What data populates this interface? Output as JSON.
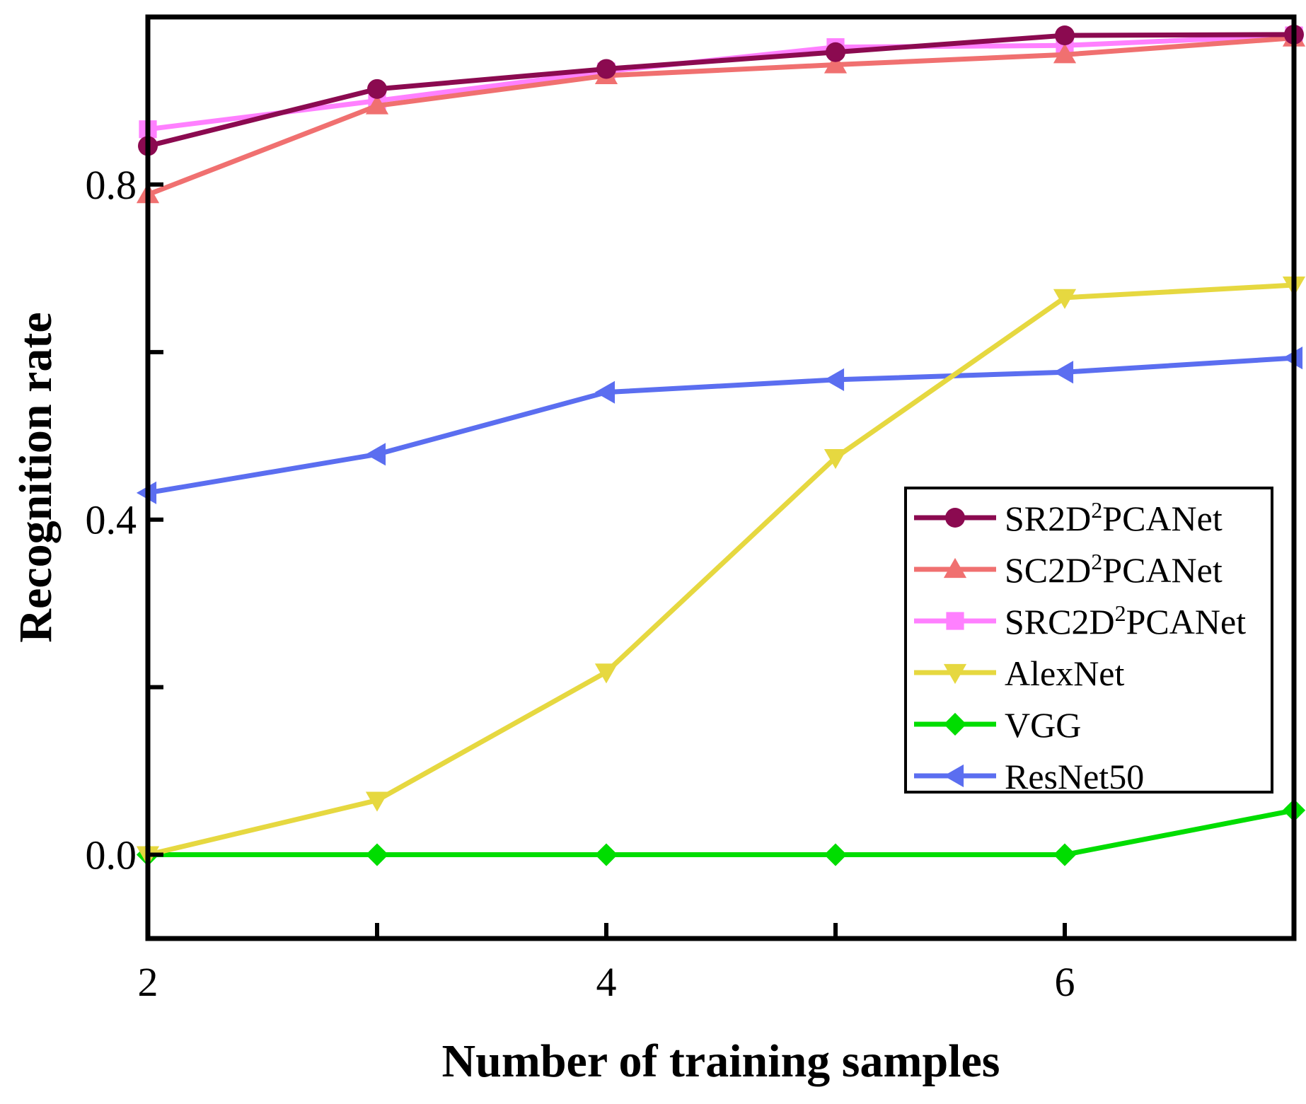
{
  "chart_data": {
    "type": "line",
    "title": "",
    "xlabel": "Number of training samples",
    "ylabel": "Recognition rate",
    "xlim": [
      2,
      7
    ],
    "ylim": [
      -0.1,
      1.0
    ],
    "x": [
      2,
      3,
      4,
      5,
      6,
      7
    ],
    "xticks": [
      2,
      3,
      4,
      5,
      6,
      7
    ],
    "xtick_labels": [
      "2",
      "",
      "4",
      "",
      "6",
      ""
    ],
    "yticks": [
      0.0,
      0.2,
      0.4,
      0.6,
      0.8
    ],
    "ytick_labels": [
      "0.0",
      "",
      "0.4",
      "",
      "0.8"
    ],
    "grid": false,
    "legend_position": "center-right",
    "series": [
      {
        "name": "SR2D",
        "sup": "2",
        "suffix": "PCANet",
        "label": "SR2D2PCANet",
        "color": "#8b0a50",
        "marker": "circle",
        "values": [
          0.846,
          0.914,
          0.938,
          0.958,
          0.978,
          0.979
        ]
      },
      {
        "name": "SC2D",
        "sup": "2",
        "suffix": "PCANet",
        "label": "SC2D2PCANet",
        "color": "#f07070",
        "marker": "triangle-up",
        "values": [
          0.788,
          0.894,
          0.93,
          0.943,
          0.955,
          0.975
        ]
      },
      {
        "name": "SRC2D",
        "sup": "2",
        "suffix": "PCANet",
        "label": "SRC2D2PCANet",
        "color": "#ff80ff",
        "marker": "square",
        "values": [
          0.866,
          0.9,
          0.935,
          0.964,
          0.966,
          0.978
        ]
      },
      {
        "name": "AlexNet",
        "sup": "",
        "suffix": "",
        "label": "AlexNet",
        "color": "#e6d840",
        "marker": "triangle-down",
        "values": [
          0.0,
          0.065,
          0.218,
          0.474,
          0.665,
          0.68
        ]
      },
      {
        "name": "VGG",
        "sup": "",
        "suffix": "",
        "label": "VGG",
        "color": "#00dd00",
        "marker": "diamond",
        "values": [
          0.0,
          0.0,
          0.0,
          0.0,
          0.0,
          0.053
        ]
      },
      {
        "name": "ResNet50",
        "sup": "",
        "suffix": "",
        "label": "ResNet50",
        "color": "#5b6ef0",
        "marker": "triangle-left",
        "values": [
          0.432,
          0.478,
          0.552,
          0.567,
          0.576,
          0.593
        ]
      }
    ]
  }
}
